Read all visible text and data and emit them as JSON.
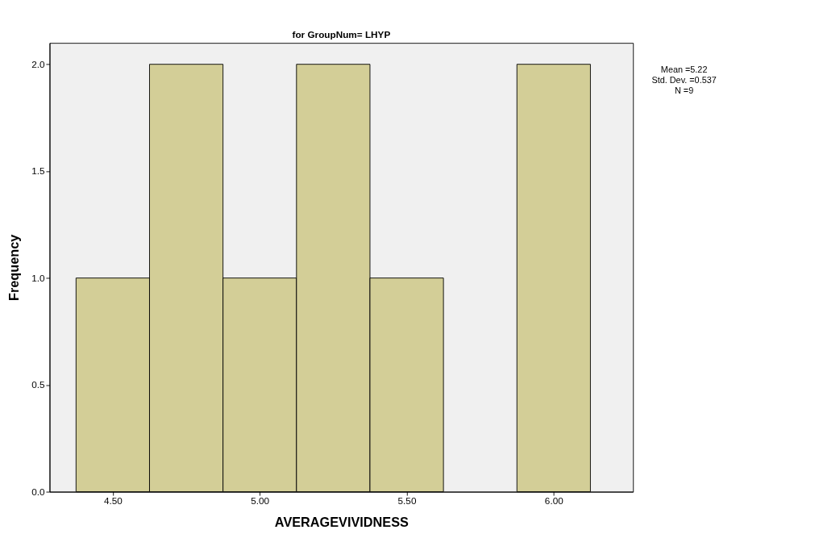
{
  "chart_data": {
    "type": "histogram",
    "title": "for GroupNum= LHYP",
    "xlabel": "AVERAGEVIVIDNESS",
    "ylabel": "Frequency",
    "bins": [
      4.375,
      4.625,
      4.875,
      5.125,
      5.375,
      5.625,
      5.875,
      6.125
    ],
    "values": [
      1,
      2,
      1,
      2,
      1,
      0,
      2
    ],
    "color": "#d3ce97",
    "xlim": [
      4.285,
      6.27
    ],
    "xticks": [
      {
        "value": 4.5,
        "label": "4.50"
      },
      {
        "value": 5.0,
        "label": "5.00"
      },
      {
        "value": 5.5,
        "label": "5.50"
      },
      {
        "value": 6.0,
        "label": "6.00"
      }
    ],
    "ylim": [
      0,
      2.1
    ],
    "yticks": [
      {
        "value": 0,
        "label": "0.0"
      },
      {
        "value": 0.5,
        "label": "0.5"
      },
      {
        "value": 1.0,
        "label": "1.0"
      },
      {
        "value": 1.5,
        "label": "1.5"
      },
      {
        "value": 2.0,
        "label": "2.0"
      }
    ],
    "annotations": [
      "Mean =5.22",
      "Std. Dev. =0.537",
      "N =9"
    ],
    "grid": false
  }
}
